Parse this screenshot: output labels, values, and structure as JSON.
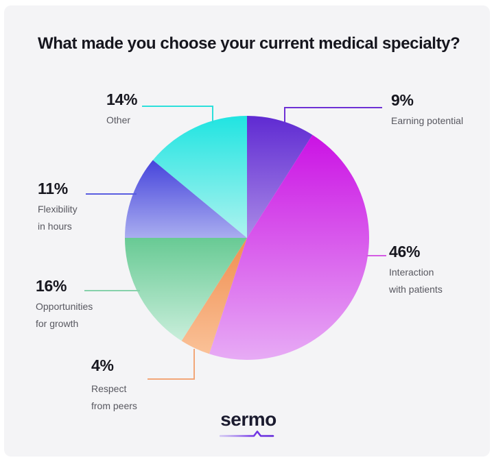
{
  "title": "What made you choose your current medical specialty?",
  "logo": {
    "text": "sermo"
  },
  "colors": {
    "page_bg": "#ffffff",
    "card_bg": "#f4f4f6",
    "title_text": "#16161e",
    "sublabel_text": "#57575f",
    "logo_text": "#1b1b2f",
    "logo_accent": "#5d21d9"
  },
  "chart_data": {
    "type": "pie",
    "title": "What made you choose your current medical specialty?",
    "start_angle_deg": 0,
    "clockwise": true,
    "legend_position": "callouts-around-pie",
    "segments": [
      {
        "label": "Earning potential",
        "label_lines": [
          "Earning potential"
        ],
        "value": 9,
        "pct_label": "9%",
        "color_top": "#5f2ad2",
        "color_bottom": "#a98ae6",
        "line_color": "#6d2fd4"
      },
      {
        "label": "Interaction with patients",
        "label_lines": [
          "Interaction",
          "with patients"
        ],
        "value": 46,
        "pct_label": "46%",
        "color_top": "#cb12e4",
        "color_bottom": "#e7abf5",
        "line_color": "#d45ae3"
      },
      {
        "label": "Respect from peers",
        "label_lines": [
          "Respect",
          "from peers"
        ],
        "value": 4,
        "pct_label": "4%",
        "color_top": "#f08e50",
        "color_bottom": "#fac197",
        "line_color": "#f2a678"
      },
      {
        "label": "Opportunities for growth",
        "label_lines": [
          "Opportunities",
          "for growth"
        ],
        "value": 16,
        "pct_label": "16%",
        "color_top": "#68ca94",
        "color_bottom": "#c9eedb",
        "line_color": "#85d1aa"
      },
      {
        "label": "Flexibility in hours",
        "label_lines": [
          "Flexibility",
          "in hours"
        ],
        "value": 11,
        "pct_label": "11%",
        "color_top": "#4644db",
        "color_bottom": "#a9adf0",
        "line_color": "#585ce0"
      },
      {
        "label": "Other",
        "label_lines": [
          "Other"
        ],
        "value": 14,
        "pct_label": "14%",
        "color_top": "#20e4e1",
        "color_bottom": "#aef3ef",
        "line_color": "#2bdfdb"
      }
    ]
  }
}
